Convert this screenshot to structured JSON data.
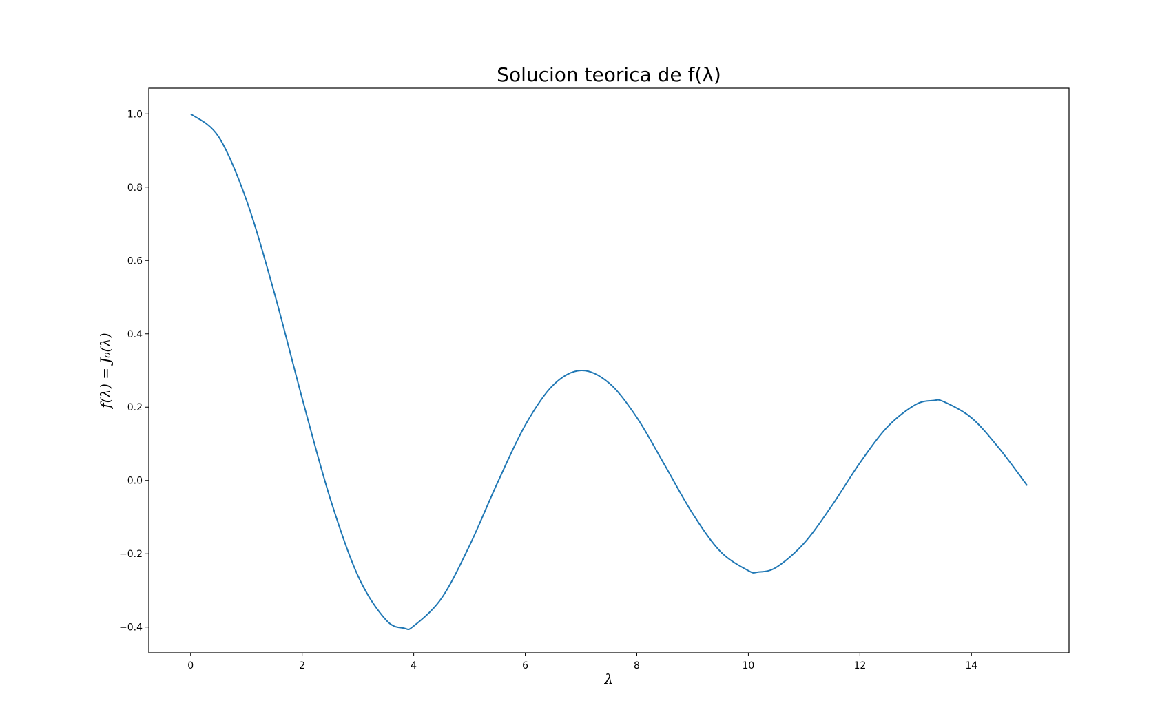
{
  "chart_data": {
    "type": "line",
    "title": "Solucion teorica de f(λ)",
    "xlabel": "λ",
    "ylabel": "f(λ) = J₀(λ)",
    "xlim": [
      -0.75,
      15.75
    ],
    "ylim": [
      -0.47,
      1.07
    ],
    "x_ticks": [
      0,
      2,
      4,
      6,
      8,
      10,
      12,
      14
    ],
    "x_tick_labels": [
      "0",
      "2",
      "4",
      "6",
      "8",
      "10",
      "12",
      "14"
    ],
    "y_ticks": [
      -0.4,
      -0.2,
      0.0,
      0.2,
      0.4,
      0.6,
      0.8,
      1.0
    ],
    "y_tick_labels": [
      "−0.4",
      "−0.2",
      "0.0",
      "0.2",
      "0.4",
      "0.6",
      "0.8",
      "1.0"
    ],
    "grid": false,
    "legend": "none",
    "series": [
      {
        "color": "#1f77b4",
        "x": [
          0,
          0.5,
          1,
          1.5,
          2,
          2.5,
          3,
          3.5,
          3.83,
          4,
          4.5,
          5,
          5.5,
          6,
          6.5,
          7,
          7.5,
          8,
          8.5,
          9,
          9.5,
          10,
          10.17,
          10.5,
          11,
          11.5,
          12,
          12.5,
          13,
          13.32,
          13.5,
          14,
          14.5,
          15
        ],
        "y": [
          1.0,
          0.938,
          0.765,
          0.512,
          0.224,
          -0.048,
          -0.26,
          -0.38,
          -0.403,
          -0.397,
          -0.321,
          -0.178,
          -0.007,
          0.151,
          0.26,
          0.3,
          0.266,
          0.172,
          0.042,
          -0.09,
          -0.194,
          -0.246,
          -0.25,
          -0.237,
          -0.171,
          -0.068,
          0.048,
          0.147,
          0.207,
          0.218,
          0.215,
          0.171,
          0.087,
          -0.014
        ]
      }
    ]
  }
}
